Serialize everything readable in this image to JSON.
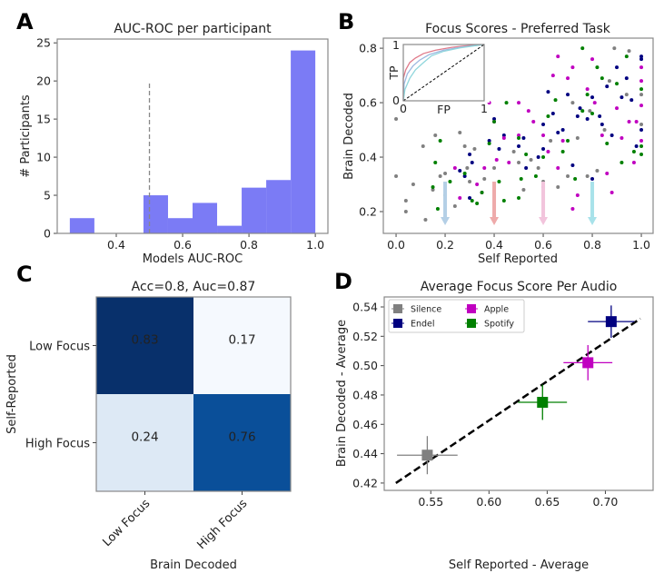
{
  "panels": [
    "A",
    "B",
    "C",
    "D"
  ],
  "chart_data": [
    {
      "type": "bar",
      "subtype": "histogram",
      "title": "AUC-ROC per participant",
      "xlabel": "Models AUC-ROC",
      "ylabel": "# Participants",
      "bin_edges": [
        0.26,
        0.334,
        0.408,
        0.482,
        0.556,
        0.63,
        0.704,
        0.778,
        0.852,
        0.926,
        1.0
      ],
      "values": [
        2,
        0,
        0,
        5,
        2,
        4,
        1,
        6,
        7,
        24
      ],
      "bar_color": "#7b7bf5",
      "reference_line": {
        "x": 0.5,
        "y_range": [
          0,
          20
        ],
        "style": "dashed",
        "color": "#888888"
      },
      "xlim": [
        0.222,
        1.038
      ],
      "ylim": [
        0,
        25.5
      ],
      "xticks": [
        0.4,
        0.6,
        0.8,
        1.0
      ],
      "xtick_labels": [
        "0.4",
        "0.6",
        "0.8",
        "1.0"
      ],
      "yticks": [
        0,
        5,
        10,
        15,
        20,
        25
      ],
      "ytick_labels": [
        "0",
        "5",
        "10",
        "15",
        "20",
        "25"
      ]
    },
    {
      "type": "scatter",
      "title": "Focus Scores - Preferred Task",
      "xlabel": "Self Reported",
      "ylabel": "Brain Decoded",
      "xlim": [
        -0.052,
        1.048
      ],
      "ylim": [
        0.12,
        0.837
      ],
      "xticks": [
        0,
        0.2,
        0.4,
        0.6,
        0.8,
        1.0
      ],
      "xtick_labels": [
        "0.0",
        "0.2",
        "0.4",
        "0.6",
        "0.8",
        "1.0"
      ],
      "yticks": [
        0.2,
        0.4,
        0.6,
        0.8
      ],
      "ytick_labels": [
        "0.2",
        "0.4",
        "0.6",
        "0.8"
      ],
      "series": [
        {
          "color": "#808080",
          "points": [
            [
              0,
              0.54
            ],
            [
              0,
              0.33
            ],
            [
              0.04,
              0.24
            ],
            [
              0.04,
              0.2
            ],
            [
              0.07,
              0.3
            ],
            [
              0.11,
              0.44
            ],
            [
              0.12,
              0.17
            ],
            [
              0.15,
              0.28
            ],
            [
              0.16,
              0.48
            ],
            [
              0.18,
              0.33
            ],
            [
              0.2,
              0.34
            ],
            [
              0.24,
              0.22
            ],
            [
              0.26,
              0.49
            ],
            [
              0.28,
              0.44
            ],
            [
              0.29,
              0.36
            ],
            [
              0.3,
              0.31
            ],
            [
              0.32,
              0.43
            ],
            [
              0.36,
              0.32
            ],
            [
              0.4,
              0.36
            ],
            [
              0.48,
              0.42
            ],
            [
              0.5,
              0.38
            ],
            [
              0.52,
              0.28
            ],
            [
              0.55,
              0.39
            ],
            [
              0.58,
              0.36
            ],
            [
              0.6,
              0.31
            ],
            [
              0.63,
              0.46
            ],
            [
              0.66,
              0.29
            ],
            [
              0.7,
              0.33
            ],
            [
              0.74,
              0.47
            ],
            [
              0.78,
              0.33
            ],
            [
              0.82,
              0.35
            ],
            [
              0.85,
              0.5
            ],
            [
              0.89,
              0.8
            ],
            [
              0.95,
              0.79
            ],
            [
              0.94,
              0.63
            ],
            [
              1,
              0.63
            ],
            [
              1,
              0.52
            ],
            [
              0.87,
              0.68
            ],
            [
              0.72,
              0.6
            ],
            [
              0.79,
              0.57
            ]
          ]
        },
        {
          "color": "#000080",
          "points": [
            [
              0.26,
              0.35
            ],
            [
              0.28,
              0.33
            ],
            [
              0.3,
              0.41
            ],
            [
              0.3,
              0.25
            ],
            [
              0.31,
              0.38
            ],
            [
              0.38,
              0.46
            ],
            [
              0.4,
              0.54
            ],
            [
              0.42,
              0.43
            ],
            [
              0.44,
              0.48
            ],
            [
              0.5,
              0.44
            ],
            [
              0.52,
              0.47
            ],
            [
              0.53,
              0.36
            ],
            [
              0.58,
              0.4
            ],
            [
              0.6,
              0.43
            ],
            [
              0.6,
              0.52
            ],
            [
              0.62,
              0.64
            ],
            [
              0.64,
              0.56
            ],
            [
              0.66,
              0.49
            ],
            [
              0.68,
              0.5
            ],
            [
              0.7,
              0.63
            ],
            [
              0.72,
              0.37
            ],
            [
              0.74,
              0.55
            ],
            [
              0.75,
              0.58
            ],
            [
              0.78,
              0.54
            ],
            [
              0.8,
              0.62
            ],
            [
              0.8,
              0.32
            ],
            [
              0.83,
              0.55
            ],
            [
              0.86,
              0.66
            ],
            [
              0.88,
              0.48
            ],
            [
              0.9,
              0.73
            ],
            [
              0.92,
              0.62
            ],
            [
              0.94,
              0.69
            ],
            [
              0.96,
              0.61
            ],
            [
              1,
              0.77
            ],
            [
              1,
              0.76
            ],
            [
              1,
              0.5
            ],
            [
              0.84,
              0.52
            ],
            [
              0.98,
              0.44
            ]
          ]
        },
        {
          "color": "#c000c0",
          "points": [
            [
              0.24,
              0.36
            ],
            [
              0.26,
              0.25
            ],
            [
              0.33,
              0.3
            ],
            [
              0.35,
              0.27
            ],
            [
              0.36,
              0.36
            ],
            [
              0.38,
              0.6
            ],
            [
              0.4,
              0.53
            ],
            [
              0.41,
              0.39
            ],
            [
              0.44,
              0.47
            ],
            [
              0.46,
              0.38
            ],
            [
              0.5,
              0.48
            ],
            [
              0.5,
              0.6
            ],
            [
              0.54,
              0.57
            ],
            [
              0.56,
              0.53
            ],
            [
              0.6,
              0.48
            ],
            [
              0.6,
              0.29
            ],
            [
              0.62,
              0.42
            ],
            [
              0.64,
              0.7
            ],
            [
              0.66,
              0.77
            ],
            [
              0.66,
              0.36
            ],
            [
              0.68,
              0.46
            ],
            [
              0.7,
              0.69
            ],
            [
              0.72,
              0.73
            ],
            [
              0.72,
              0.21
            ],
            [
              0.74,
              0.26
            ],
            [
              0.78,
              0.65
            ],
            [
              0.8,
              0.76
            ],
            [
              0.81,
              0.6
            ],
            [
              0.84,
              0.48
            ],
            [
              0.86,
              0.34
            ],
            [
              0.88,
              0.27
            ],
            [
              0.9,
              0.58
            ],
            [
              0.92,
              0.47
            ],
            [
              0.95,
              0.53
            ],
            [
              0.97,
              0.38
            ],
            [
              1,
              0.73
            ],
            [
              1,
              0.68
            ],
            [
              1,
              0.59
            ],
            [
              1,
              0.46
            ],
            [
              0.98,
              0.53
            ]
          ]
        },
        {
          "color": "#008000",
          "points": [
            [
              0.15,
              0.29
            ],
            [
              0.16,
              0.38
            ],
            [
              0.17,
              0.21
            ],
            [
              0.18,
              0.46
            ],
            [
              0.2,
              0.26
            ],
            [
              0.22,
              0.31
            ],
            [
              0.28,
              0.34
            ],
            [
              0.31,
              0.24
            ],
            [
              0.33,
              0.23
            ],
            [
              0.35,
              0.27
            ],
            [
              0.38,
              0.45
            ],
            [
              0.4,
              0.53
            ],
            [
              0.42,
              0.31
            ],
            [
              0.44,
              0.24
            ],
            [
              0.45,
              0.6
            ],
            [
              0.5,
              0.47
            ],
            [
              0.5,
              0.25
            ],
            [
              0.51,
              0.32
            ],
            [
              0.53,
              0.41
            ],
            [
              0.57,
              0.33
            ],
            [
              0.6,
              0.4
            ],
            [
              0.62,
              0.55
            ],
            [
              0.65,
              0.61
            ],
            [
              0.68,
              0.42
            ],
            [
              0.7,
              0.46
            ],
            [
              0.73,
              0.32
            ],
            [
              0.76,
              0.8
            ],
            [
              0.76,
              0.57
            ],
            [
              0.78,
              0.63
            ],
            [
              0.8,
              0.56
            ],
            [
              0.82,
              0.73
            ],
            [
              0.84,
              0.69
            ],
            [
              0.86,
              0.45
            ],
            [
              0.9,
              0.67
            ],
            [
              0.92,
              0.38
            ],
            [
              0.94,
              0.77
            ],
            [
              1,
              0.65
            ],
            [
              1,
              0.44
            ],
            [
              1,
              0.41
            ],
            [
              0.97,
              0.42
            ]
          ]
        }
      ],
      "arrows": [
        {
          "x": 0.2,
          "from": 0.31,
          "to": 0.15,
          "color": "#b4cfe6"
        },
        {
          "x": 0.4,
          "from": 0.31,
          "to": 0.15,
          "color": "#eeaaaa"
        },
        {
          "x": 0.6,
          "from": 0.31,
          "to": 0.15,
          "color": "#f2c4dc"
        },
        {
          "x": 0.8,
          "from": 0.31,
          "to": 0.15,
          "color": "#a8e2ea"
        }
      ],
      "inset": {
        "type": "line",
        "xlabel": "FP",
        "ylabel": "TP",
        "xtick_labels": [
          "0",
          "1"
        ],
        "ytick_labels": [
          "0",
          "1"
        ],
        "xlim": [
          0,
          1
        ],
        "ylim": [
          0,
          1
        ],
        "curves": [
          {
            "color": "#e07a8a",
            "points": [
              [
                0,
                0
              ],
              [
                0,
                0.4
              ],
              [
                0.03,
                0.55
              ],
              [
                0.08,
                0.68
              ],
              [
                0.15,
                0.76
              ],
              [
                0.25,
                0.84
              ],
              [
                0.4,
                0.9
              ],
              [
                0.6,
                0.95
              ],
              [
                0.8,
                0.98
              ],
              [
                1,
                1
              ]
            ]
          },
          {
            "color": "#9db8e0",
            "points": [
              [
                0,
                0
              ],
              [
                0.01,
                0.3
              ],
              [
                0.05,
                0.48
              ],
              [
                0.12,
                0.62
              ],
              [
                0.2,
                0.72
              ],
              [
                0.32,
                0.82
              ],
              [
                0.5,
                0.9
              ],
              [
                0.7,
                0.95
              ],
              [
                1,
                1
              ]
            ]
          },
          {
            "color": "#8fd6dc",
            "points": [
              [
                0,
                0
              ],
              [
                0.02,
                0.2
              ],
              [
                0.08,
                0.4
              ],
              [
                0.15,
                0.55
              ],
              [
                0.25,
                0.68
              ],
              [
                0.35,
                0.8
              ],
              [
                0.5,
                0.88
              ],
              [
                0.7,
                0.94
              ],
              [
                1,
                1
              ]
            ]
          }
        ],
        "diagonal": {
          "style": "dashed",
          "color": "#000000"
        }
      }
    },
    {
      "type": "heatmap",
      "title": "Acc=0.8, Auc=0.87",
      "xlabel": "Brain Decoded",
      "ylabel": "Self-Reported",
      "x_categories": [
        "Low Focus",
        "High Focus"
      ],
      "y_categories": [
        "Low Focus",
        "High Focus"
      ],
      "values": [
        [
          0.83,
          0.17
        ],
        [
          0.24,
          0.76
        ]
      ],
      "value_labels": [
        [
          "0.83",
          "0.17"
        ],
        [
          "0.24",
          "0.76"
        ]
      ],
      "cell_colors": [
        [
          "#08306b",
          "#f5f9fe"
        ],
        [
          "#dde9f5",
          "#0a4f99"
        ]
      ],
      "colormap": "Blues"
    },
    {
      "type": "scatter",
      "subtype": "errorbar",
      "title": "Average Focus Score Per Audio",
      "xlabel": "Self Reported - Average",
      "ylabel": "Brain Decoded - Average",
      "xlim": [
        0.51,
        0.741
      ],
      "ylim": [
        0.415,
        0.5468
      ],
      "xticks": [
        0.55,
        0.6,
        0.65,
        0.7
      ],
      "xtick_labels": [
        "0.55",
        "0.60",
        "0.65",
        "0.70"
      ],
      "yticks": [
        0.42,
        0.44,
        0.46,
        0.48,
        0.5,
        0.52,
        0.54
      ],
      "ytick_labels": [
        "0.42",
        "0.44",
        "0.46",
        "0.48",
        "0.50",
        "0.52",
        "0.54"
      ],
      "legend_placement": "top-left",
      "series": [
        {
          "name": "Silence",
          "color": "#808080",
          "x": 0.547,
          "y": 0.439,
          "xerr": 0.026,
          "yerr": 0.013
        },
        {
          "name": "Endel",
          "color": "#000080",
          "x": 0.705,
          "y": 0.53,
          "xerr": 0.02,
          "yerr": 0.011
        },
        {
          "name": "Apple",
          "color": "#c000c0",
          "x": 0.685,
          "y": 0.502,
          "xerr": 0.021,
          "yerr": 0.012
        },
        {
          "name": "Spotify",
          "color": "#008000",
          "x": 0.646,
          "y": 0.475,
          "xerr": 0.021,
          "yerr": 0.012
        }
      ],
      "fit_line": {
        "points": [
          [
            0.52,
            0.42
          ],
          [
            0.73,
            0.532
          ]
        ],
        "style": "dashed",
        "color": "#000000"
      }
    }
  ]
}
